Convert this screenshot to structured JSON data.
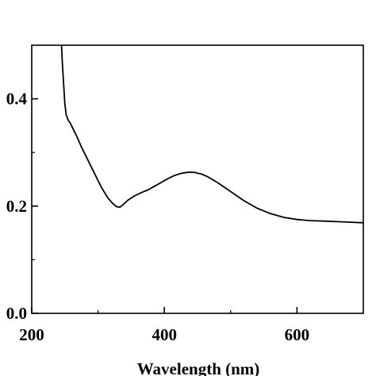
{
  "chart_data": {
    "type": "line",
    "title": "",
    "xlabel": "Wavelength (nm)",
    "ylabel": "",
    "xlim": [
      200,
      700
    ],
    "ylim": [
      0.0,
      0.5
    ],
    "grid": false,
    "x_ticks": [
      200,
      400,
      600
    ],
    "x_tick_labels": [
      "200",
      "400",
      "600"
    ],
    "y_ticks": [
      0.0,
      0.2,
      0.4
    ],
    "y_tick_labels": [
      "0.0",
      "0.2",
      "0.4"
    ],
    "series": [
      {
        "color": "#000000",
        "x": [
          245,
          246,
          248,
          250,
          252,
          255,
          258,
          262,
          268,
          275,
          285,
          295,
          305,
          315,
          322,
          328,
          333,
          338,
          345,
          355,
          365,
          375,
          385,
          395,
          405,
          415,
          425,
          435,
          445,
          455,
          465,
          480,
          500,
          520,
          540,
          560,
          580,
          600,
          620,
          640,
          660,
          680,
          700
        ],
        "y": [
          0.5,
          0.47,
          0.43,
          0.39,
          0.37,
          0.36,
          0.355,
          0.345,
          0.33,
          0.31,
          0.285,
          0.26,
          0.235,
          0.215,
          0.205,
          0.199,
          0.198,
          0.203,
          0.211,
          0.219,
          0.225,
          0.23,
          0.237,
          0.244,
          0.251,
          0.257,
          0.261,
          0.263,
          0.263,
          0.26,
          0.255,
          0.244,
          0.227,
          0.21,
          0.196,
          0.186,
          0.179,
          0.175,
          0.173,
          0.172,
          0.171,
          0.17,
          0.169
        ]
      }
    ]
  }
}
